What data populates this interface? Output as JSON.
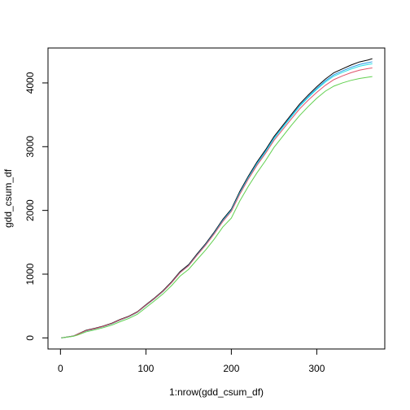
{
  "chart_data": {
    "type": "line",
    "title": "",
    "xlabel": "1:nrow(gdd_csum_df)",
    "ylabel": "gdd_csum_df",
    "xlim": [
      -14.6,
      379.6
    ],
    "ylim": [
      -174.0,
      4548.0
    ],
    "xticks": [
      0,
      100,
      200,
      300
    ],
    "yticks": [
      0,
      1000,
      2000,
      3000,
      4000
    ],
    "grid": false,
    "legend": "none",
    "series": [
      {
        "color": "#000000",
        "x": [
          1,
          15,
          20,
          30,
          40,
          50,
          60,
          70,
          80,
          90,
          100,
          110,
          120,
          130,
          140,
          150,
          160,
          170,
          180,
          190,
          200,
          210,
          220,
          230,
          240,
          250,
          260,
          270,
          280,
          290,
          300,
          310,
          320,
          330,
          340,
          350,
          360,
          365
        ],
        "y": [
          0,
          30,
          60,
          120,
          150,
          185,
          230,
          290,
          340,
          410,
          520,
          625,
          740,
          880,
          1040,
          1150,
          1320,
          1480,
          1660,
          1860,
          2020,
          2300,
          2540,
          2760,
          2950,
          3160,
          3330,
          3500,
          3670,
          3810,
          3940,
          4060,
          4160,
          4220,
          4280,
          4330,
          4360,
          4380
        ]
      },
      {
        "color": "#2297E6",
        "x": [
          1,
          15,
          20,
          30,
          40,
          50,
          60,
          70,
          80,
          90,
          100,
          110,
          120,
          130,
          140,
          150,
          160,
          170,
          180,
          190,
          200,
          210,
          220,
          230,
          240,
          250,
          260,
          270,
          280,
          290,
          300,
          310,
          320,
          330,
          340,
          350,
          360,
          365
        ],
        "y": [
          0,
          28,
          55,
          112,
          142,
          178,
          222,
          282,
          332,
          402,
          510,
          615,
          730,
          868,
          1028,
          1138,
          1306,
          1466,
          1646,
          1844,
          2004,
          2280,
          2520,
          2738,
          2928,
          3138,
          3308,
          3478,
          3646,
          3786,
          3914,
          4032,
          4128,
          4188,
          4244,
          4290,
          4318,
          4332
        ]
      },
      {
        "color": "#28E2E5",
        "x": [
          1,
          15,
          20,
          30,
          40,
          50,
          60,
          70,
          80,
          90,
          100,
          110,
          120,
          130,
          140,
          150,
          160,
          170,
          180,
          190,
          200,
          210,
          220,
          230,
          240,
          250,
          260,
          270,
          280,
          290,
          300,
          310,
          320,
          330,
          340,
          350,
          360,
          365
        ],
        "y": [
          0,
          27,
          54,
          110,
          140,
          176,
          220,
          280,
          330,
          400,
          508,
          612,
          726,
          864,
          1022,
          1132,
          1300,
          1460,
          1638,
          1836,
          1996,
          2272,
          2510,
          2728,
          2916,
          3126,
          3296,
          3464,
          3632,
          3770,
          3898,
          4012,
          4106,
          4164,
          4218,
          4262,
          4290,
          4300
        ]
      },
      {
        "color": "#DF536B",
        "x": [
          1,
          15,
          20,
          30,
          40,
          50,
          60,
          70,
          80,
          90,
          100,
          110,
          120,
          130,
          140,
          150,
          160,
          170,
          180,
          190,
          200,
          210,
          220,
          230,
          240,
          250,
          260,
          270,
          280,
          290,
          300,
          310,
          320,
          330,
          340,
          350,
          360,
          365
        ],
        "y": [
          0,
          28,
          56,
          114,
          144,
          180,
          224,
          284,
          334,
          404,
          512,
          616,
          730,
          866,
          1024,
          1132,
          1298,
          1456,
          1632,
          1826,
          1984,
          2256,
          2494,
          2708,
          2894,
          3100,
          3266,
          3430,
          3594,
          3730,
          3852,
          3962,
          4052,
          4110,
          4160,
          4200,
          4226,
          4236
        ]
      },
      {
        "color": "#61D04F",
        "x": [
          1,
          15,
          20,
          30,
          40,
          50,
          60,
          70,
          80,
          90,
          100,
          110,
          120,
          130,
          140,
          150,
          160,
          170,
          180,
          190,
          200,
          210,
          220,
          230,
          240,
          250,
          260,
          270,
          280,
          290,
          300,
          310,
          320,
          330,
          340,
          350,
          360,
          365
        ],
        "y": [
          0,
          25,
          45,
          95,
          125,
          160,
          200,
          255,
          305,
          370,
          475,
          580,
          690,
          820,
          970,
          1075,
          1230,
          1380,
          1550,
          1740,
          1880,
          2150,
          2380,
          2590,
          2780,
          2990,
          3160,
          3330,
          3490,
          3630,
          3760,
          3870,
          3950,
          4000,
          4040,
          4070,
          4090,
          4100
        ]
      }
    ]
  }
}
